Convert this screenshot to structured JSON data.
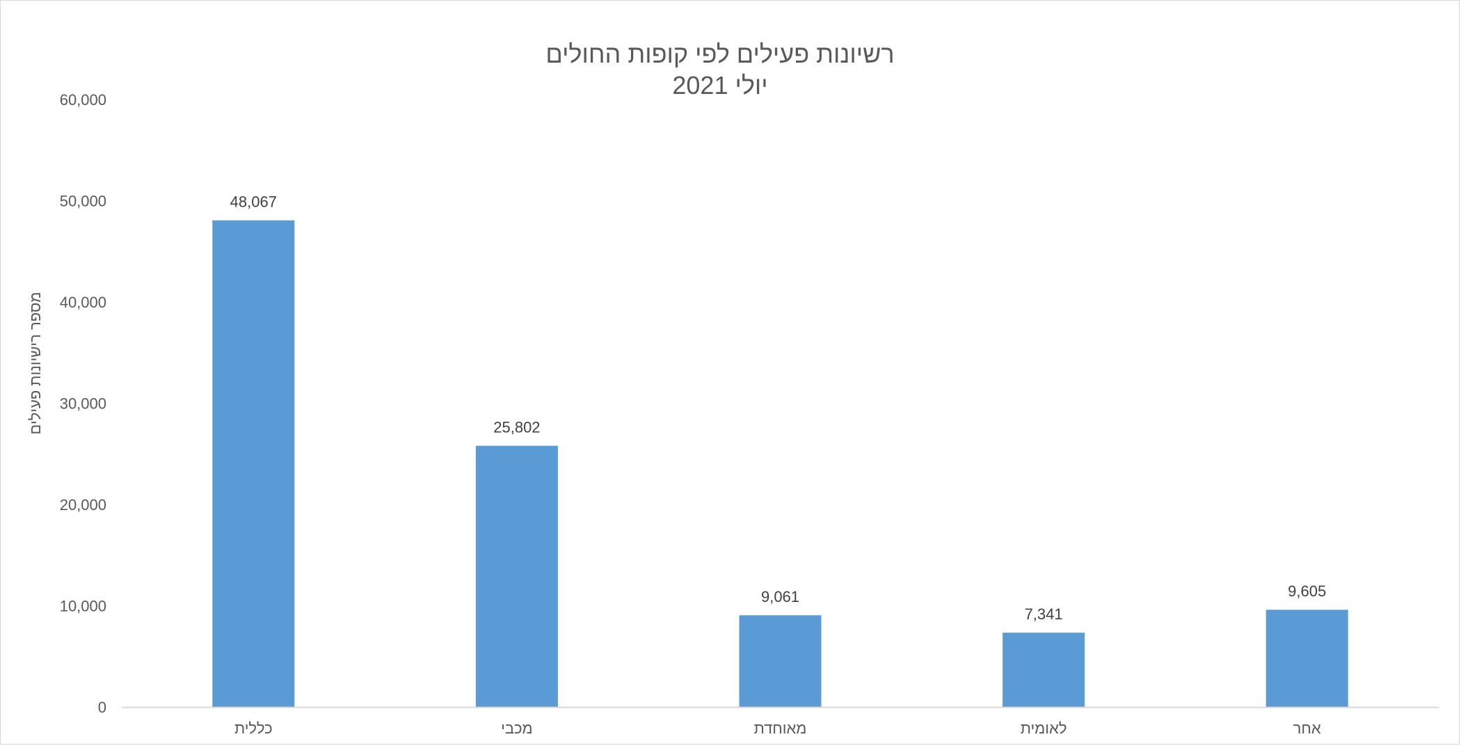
{
  "chart_data": {
    "type": "bar",
    "title": "רשיונות פעילים לפי קופות החולים",
    "subtitle": "יולי 2021",
    "xlabel": "",
    "ylabel": "מספר רישיונות פעילים",
    "categories": [
      "כללית",
      "מכבי",
      "מאוחדת",
      "לאומית",
      "אחר"
    ],
    "values": [
      48067,
      25802,
      9061,
      7341,
      9605
    ],
    "value_labels": [
      "48,067",
      "25,802",
      "9,061",
      "7,341",
      "9,605"
    ],
    "ylim": [
      0,
      60000
    ],
    "yticks": [
      0,
      10000,
      20000,
      30000,
      40000,
      50000,
      60000
    ],
    "ytick_labels": [
      "0",
      "10,000",
      "20,000",
      "30,000",
      "40,000",
      "50,000",
      "60,000"
    ],
    "gridlines": false,
    "legend": "none",
    "bar_color": "#5b9bd5",
    "axis_color": "#d9d9d9"
  }
}
